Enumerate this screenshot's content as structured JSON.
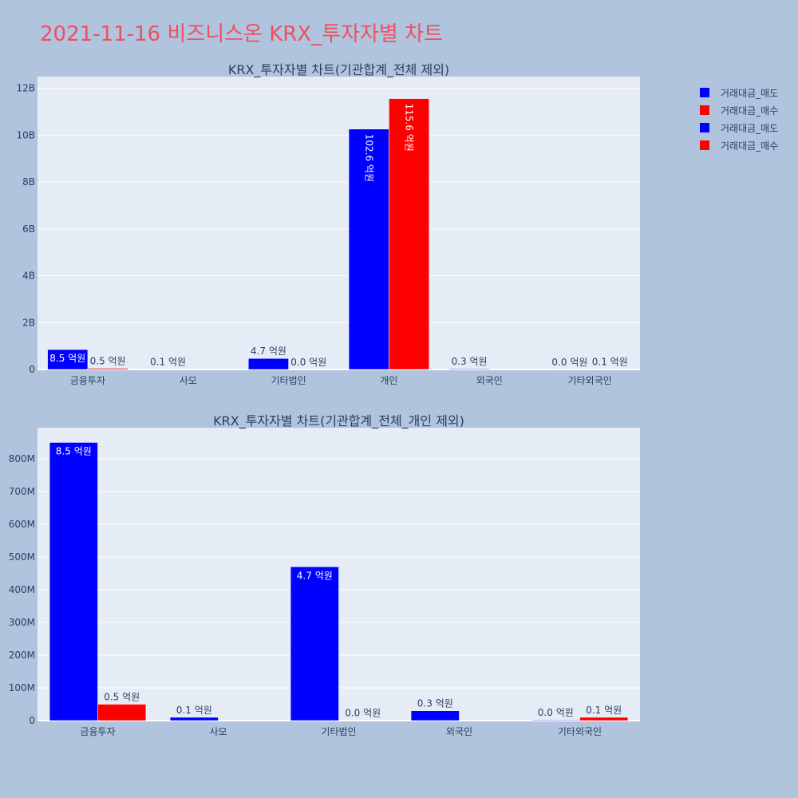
{
  "page": {
    "title": "2021-11-16 비즈니스온 KRX_투자자별 차트",
    "title_color": "#ef5060",
    "background": "#b0c4de",
    "plot_background": "#e5ecf6"
  },
  "legend": {
    "entries": [
      {
        "label": "거래대금_매도",
        "color": "#0000ff"
      },
      {
        "label": "거래대금_매수",
        "color": "#ff0000"
      },
      {
        "label": "거래대금_매도",
        "color": "#0000ff"
      },
      {
        "label": "거래대금_매수",
        "color": "#ff0000"
      }
    ]
  },
  "chart_data": [
    {
      "type": "bar",
      "title": "KRX_투자자별 차트(기관합계_전체 제외)",
      "categories": [
        "금융투자",
        "사모",
        "기타법인",
        "개인",
        "외국인",
        "기타외국인"
      ],
      "series": [
        {
          "name": "거래대금_매도",
          "color": "#0000ff",
          "values": [
            850000000,
            10000000,
            470000000,
            10260000000,
            30000000,
            2000000
          ],
          "labels": [
            "8.5 억원",
            "0.1 억원",
            "4.7 억원",
            "102.6 억원",
            "0.3 억원",
            "0.0 억원"
          ]
        },
        {
          "name": "거래대금_매수",
          "color": "#ff0000",
          "values": [
            50000000,
            0,
            1000000,
            11560000000,
            0,
            10000000
          ],
          "labels": [
            "0.5 억원",
            "",
            "0.0 억원",
            "115.6 억원",
            "",
            "0.1 억원"
          ]
        }
      ],
      "ylim": [
        0,
        12500000000
      ],
      "yticks": [
        0,
        2000000000,
        4000000000,
        6000000000,
        8000000000,
        10000000000,
        12000000000
      ],
      "ytick_labels": [
        "0",
        "2B",
        "4B",
        "6B",
        "8B",
        "10B",
        "12B"
      ],
      "inside_labels": [
        [
          true,
          false,
          false,
          true,
          false,
          false
        ],
        [
          false,
          false,
          false,
          true,
          false,
          false
        ]
      ],
      "rotated_labels": [
        [
          false,
          false,
          false,
          true,
          false,
          false
        ],
        [
          false,
          false,
          false,
          true,
          false,
          false
        ]
      ],
      "grid": true
    },
    {
      "type": "bar",
      "title": "KRX_투자자별 차트(기관합계_전체_개인 제외)",
      "categories": [
        "금융투자",
        "사모",
        "기타법인",
        "외국인",
        "기타외국인"
      ],
      "series": [
        {
          "name": "거래대금_매도",
          "color": "#0000ff",
          "values": [
            850000000,
            10000000,
            470000000,
            30000000,
            2000000
          ],
          "labels": [
            "8.5 억원",
            "0.1 억원",
            "4.7 억원",
            "0.3 억원",
            "0.0 억원"
          ]
        },
        {
          "name": "거래대금_매수",
          "color": "#ff0000",
          "values": [
            50000000,
            0,
            1000000,
            0,
            10000000
          ],
          "labels": [
            "0.5 억원",
            "",
            "0.0 억원",
            "",
            "0.1 억원"
          ]
        }
      ],
      "ylim": [
        0,
        895000000
      ],
      "yticks": [
        0,
        100000000,
        200000000,
        300000000,
        400000000,
        500000000,
        600000000,
        700000000,
        800000000
      ],
      "ytick_labels": [
        "0",
        "100M",
        "200M",
        "300M",
        "400M",
        "500M",
        "600M",
        "700M",
        "800M"
      ],
      "inside_labels": [
        [
          true,
          false,
          true,
          false,
          false
        ],
        [
          false,
          false,
          false,
          false,
          false
        ]
      ],
      "rotated_labels": [
        [
          false,
          false,
          false,
          false,
          false
        ],
        [
          false,
          false,
          false,
          false,
          false
        ]
      ],
      "grid": true
    }
  ]
}
